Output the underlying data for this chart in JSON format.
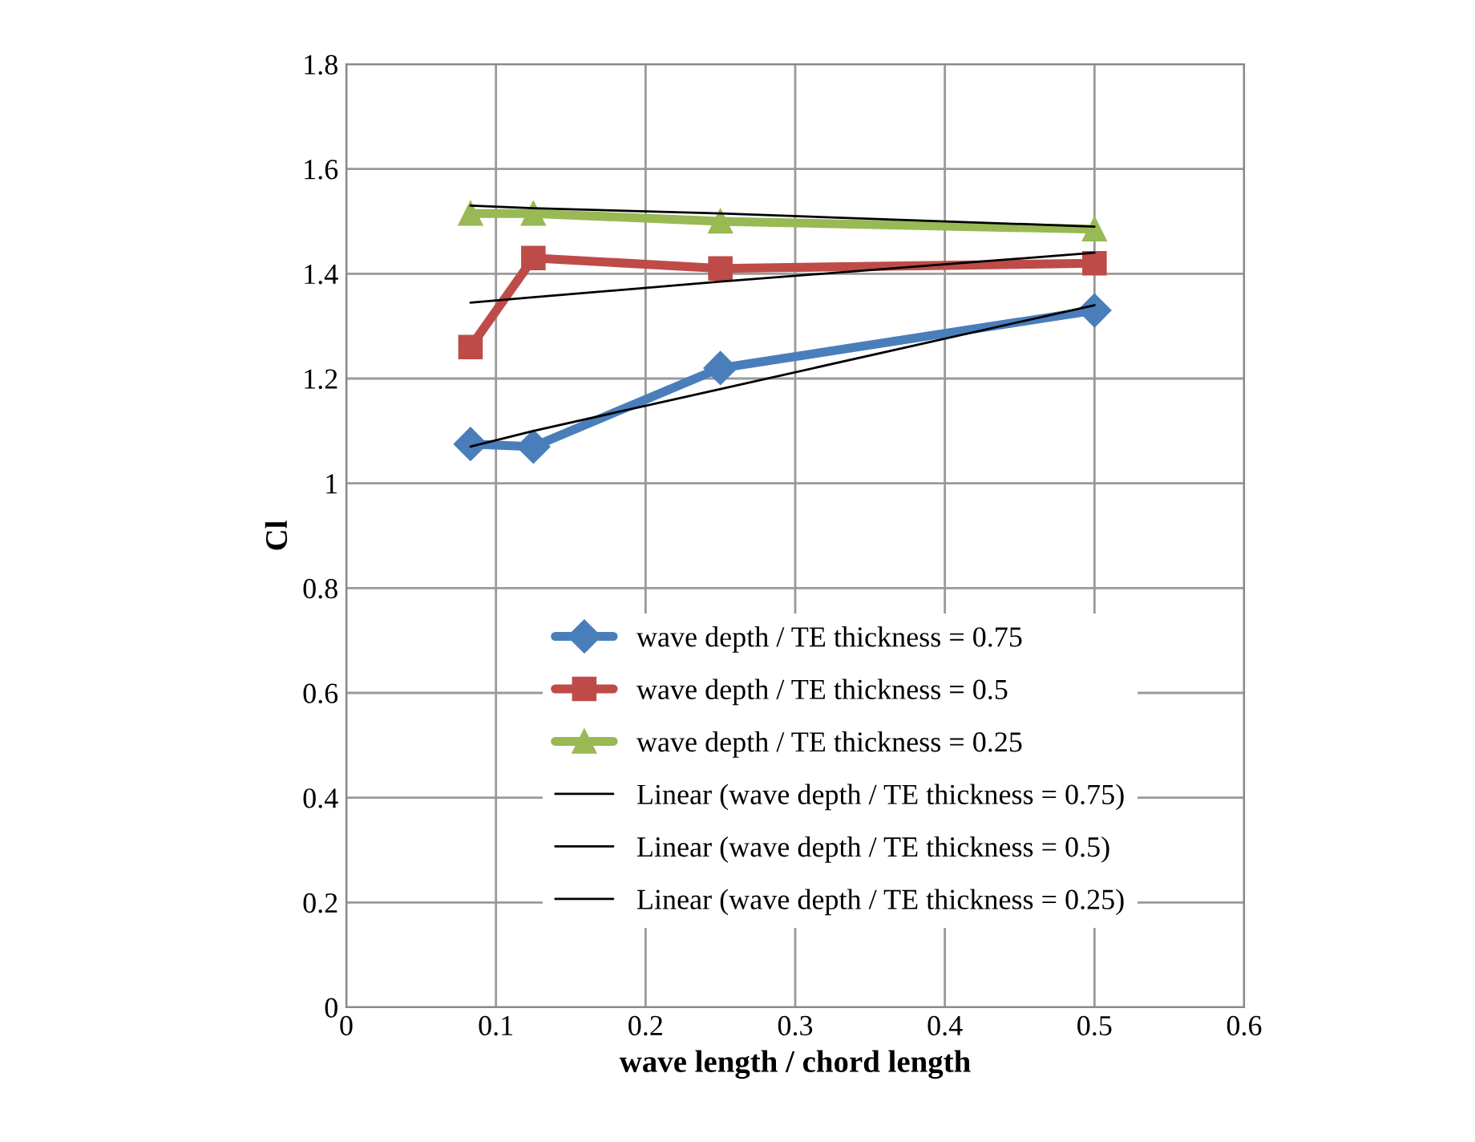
{
  "chart_data": {
    "type": "line",
    "xlabel": "wave length / chord length",
    "ylabel": "Cl",
    "x": [
      0.083,
      0.125,
      0.25,
      0.5
    ],
    "series": [
      {
        "name": "wave depth / TE thickness = 0.75",
        "color": "#4a7ebb",
        "marker": "diamond",
        "values": [
          1.075,
          1.07,
          1.22,
          1.33
        ]
      },
      {
        "name": "wave depth / TE thickness = 0.5",
        "color": "#be4b48",
        "marker": "square",
        "values": [
          1.26,
          1.43,
          1.41,
          1.42
        ]
      },
      {
        "name": "wave depth / TE thickness = 0.25",
        "color": "#98b954",
        "marker": "triangle",
        "values": [
          1.515,
          1.515,
          1.5,
          1.485
        ]
      },
      {
        "name": "Linear (wave depth / TE thickness = 0.75)",
        "color": "#000000",
        "marker": "none",
        "values": [
          1.07,
          1.1,
          1.18,
          1.34
        ]
      },
      {
        "name": "Linear (wave depth / TE thickness = 0.5)",
        "color": "#000000",
        "marker": "none",
        "values": [
          1.345,
          1.355,
          1.385,
          1.44
        ]
      },
      {
        "name": "Linear (wave depth / TE thickness = 0.25)",
        "color": "#000000",
        "marker": "none",
        "values": [
          1.53,
          1.525,
          1.515,
          1.49
        ]
      }
    ],
    "xlim": [
      0,
      0.6
    ],
    "xticks": [
      0,
      0.1,
      0.2,
      0.3,
      0.4,
      0.5,
      0.6
    ],
    "ylim": [
      0,
      1.8
    ],
    "yticks": [
      0,
      0.2,
      0.4,
      0.6,
      0.8,
      1,
      1.2,
      1.4,
      1.6,
      1.8
    ],
    "grid": true,
    "legend": "bottom",
    "line_style": "solid"
  }
}
